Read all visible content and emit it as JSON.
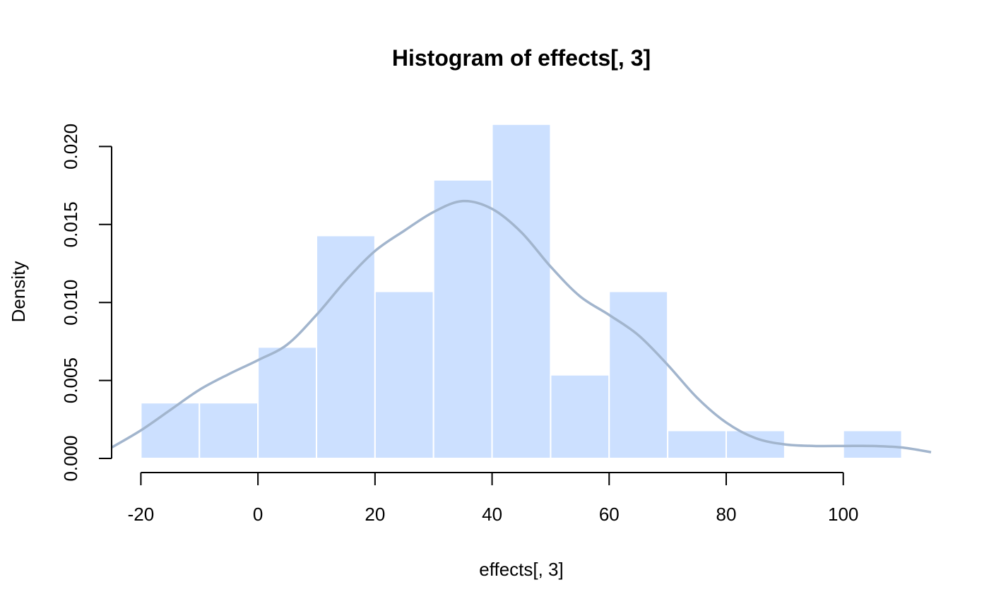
{
  "chart_data": {
    "type": "bar",
    "title": "Histogram of effects[, 3]",
    "xlabel": "effects[, 3]",
    "ylabel": "Density",
    "xlim": [
      -25,
      115
    ],
    "ylim": [
      0,
      0.0215
    ],
    "x_ticks": [
      -20,
      0,
      20,
      40,
      60,
      80,
      100
    ],
    "x_tick_labels": [
      "-20",
      "0",
      "20",
      "40",
      "60",
      "80",
      "100"
    ],
    "y_ticks": [
      0,
      0.005,
      0.01,
      0.015,
      0.02
    ],
    "y_tick_labels": [
      "0.000",
      "0.005",
      "0.010",
      "0.015",
      "0.020"
    ],
    "bins": [
      {
        "x0": -20,
        "x1": -10,
        "density": 0.00357
      },
      {
        "x0": -10,
        "x1": 0,
        "density": 0.00357
      },
      {
        "x0": 0,
        "x1": 10,
        "density": 0.00714
      },
      {
        "x0": 10,
        "x1": 20,
        "density": 0.01429
      },
      {
        "x0": 20,
        "x1": 30,
        "density": 0.01071
      },
      {
        "x0": 30,
        "x1": 40,
        "density": 0.01786
      },
      {
        "x0": 40,
        "x1": 50,
        "density": 0.02143
      },
      {
        "x0": 50,
        "x1": 60,
        "density": 0.00536
      },
      {
        "x0": 60,
        "x1": 70,
        "density": 0.01071
      },
      {
        "x0": 70,
        "x1": 80,
        "density": 0.00179
      },
      {
        "x0": 80,
        "x1": 90,
        "density": 0.00179
      },
      {
        "x0": 90,
        "x1": 100,
        "density": 0
      },
      {
        "x0": 100,
        "x1": 110,
        "density": 0.00179
      }
    ],
    "density_curve": {
      "x": [
        -25,
        -20,
        -15,
        -10,
        -5,
        0,
        5,
        10,
        15,
        20,
        25,
        30,
        35,
        40,
        45,
        50,
        55,
        60,
        65,
        70,
        75,
        80,
        85,
        90,
        95,
        100,
        105,
        110,
        115
      ],
      "y": [
        0.0007,
        0.0018,
        0.0031,
        0.0044,
        0.0054,
        0.0063,
        0.0073,
        0.0092,
        0.0114,
        0.0133,
        0.0146,
        0.0158,
        0.0165,
        0.016,
        0.0145,
        0.0123,
        0.0104,
        0.0092,
        0.0079,
        0.006,
        0.0039,
        0.0023,
        0.0013,
        0.0009,
        0.0008,
        0.0008,
        0.0008,
        0.0007,
        0.0004
      ]
    },
    "colors": {
      "bar_fill": "#cce0ff",
      "bar_border": "#ffffff",
      "density_line": "#a2b5cd",
      "axis": "#000000"
    }
  }
}
